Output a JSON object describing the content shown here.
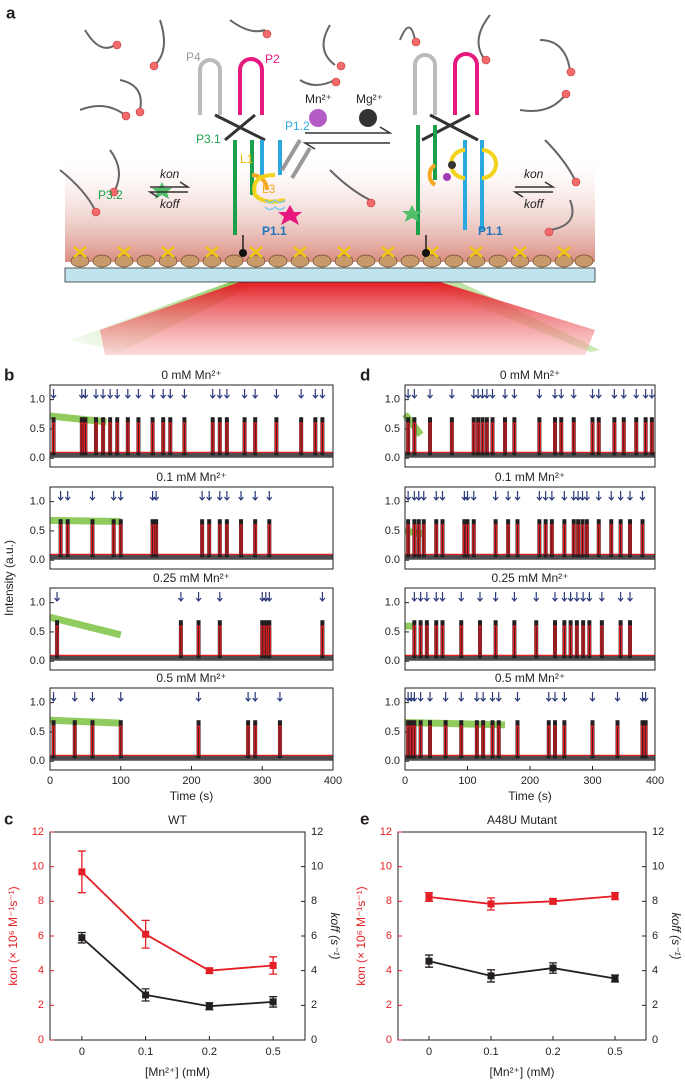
{
  "panel_labels": {
    "a": "a",
    "b": "b",
    "c": "c",
    "d": "d",
    "e": "e"
  },
  "diagram": {
    "labels": {
      "p4": "P4",
      "p2": "P2",
      "p31": "P3.1",
      "p12": "P1.2",
      "l1": "L1",
      "l3": "L3",
      "p32": "P3.2",
      "p11_left": "P1.1",
      "mn": "Mn²⁺",
      "mg": "Mg²⁺",
      "kon_left": "kon",
      "koff_left": "koff",
      "p11_right": "P1.1",
      "kon_right": "kon",
      "koff_right": "koff"
    }
  },
  "chart_data": [
    {
      "type": "trace",
      "title": "0 mM Mn²⁺",
      "xlim": [
        0,
        400
      ],
      "ylim": [
        -0.15,
        1.25
      ],
      "yticks": [
        {
          "value": 0,
          "label": "0.0"
        },
        {
          "value": 0.5,
          "label": "0.5"
        },
        {
          "value": 1,
          "label": "1.0"
        }
      ],
      "arrows": [
        5,
        45,
        50,
        65,
        75,
        85,
        95,
        110,
        125,
        145,
        160,
        170,
        190,
        230,
        240,
        250,
        275,
        290,
        320,
        355,
        375,
        385
      ],
      "fit": {
        "color": "#e31e24",
        "baseline": 0.1,
        "level": 0.6
      },
      "trace": {
        "color": "#231f20",
        "baseline": 0.05,
        "level": 0.7
      },
      "donor": {
        "color": "#7dc242",
        "x": [
          0,
          80
        ],
        "values": [
          0.72,
          0.62
        ]
      }
    },
    {
      "type": "trace",
      "title": "0.1 mM Mn²⁺",
      "xlim": [
        0,
        400
      ],
      "ylim": [
        -0.15,
        1.25
      ],
      "yticks": [
        {
          "value": 0,
          "label": "0.0"
        },
        {
          "value": 0.5,
          "label": "0.5"
        },
        {
          "value": 1,
          "label": "1.0"
        }
      ],
      "arrows": [
        15,
        25,
        60,
        90,
        100,
        145,
        150,
        215,
        225,
        240,
        250,
        270,
        290,
        310
      ],
      "fit": {
        "color": "#e31e24",
        "baseline": 0.1,
        "level": 0.6
      },
      "trace": {
        "color": "#231f20",
        "baseline": 0.05,
        "level": 0.7
      },
      "donor": {
        "color": "#7dc242",
        "x": [
          0,
          100
        ],
        "values": [
          0.68,
          0.66
        ]
      }
    },
    {
      "type": "trace",
      "title": "0.25 mM Mn²⁺",
      "xlim": [
        0,
        400
      ],
      "ylim": [
        -0.15,
        1.25
      ],
      "yticks": [
        {
          "value": 0,
          "label": "0.0"
        },
        {
          "value": 0.5,
          "label": "0.5"
        },
        {
          "value": 1,
          "label": "1.0"
        }
      ],
      "ylabel": "Intensity (a.u.)",
      "arrows": [
        10,
        185,
        210,
        240,
        300,
        305,
        310,
        385
      ],
      "fit": {
        "color": "#e31e24",
        "baseline": 0.1,
        "level": 0.6
      },
      "trace": {
        "color": "#231f20",
        "baseline": 0.05,
        "level": 0.7
      },
      "donor": {
        "color": "#7dc242",
        "x": [
          0,
          100
        ],
        "values": [
          0.75,
          0.45
        ]
      }
    },
    {
      "type": "trace",
      "title": "0.5 mM Mn²⁺",
      "xlim": [
        0,
        400
      ],
      "ylim": [
        -0.15,
        1.25
      ],
      "yticks": [
        {
          "value": 0,
          "label": "0.0"
        },
        {
          "value": 0.5,
          "label": "0.5"
        },
        {
          "value": 1,
          "label": "1.0"
        }
      ],
      "xticks": [
        0,
        100,
        200,
        300,
        400
      ],
      "xlabel": "Time (s)",
      "arrows": [
        5,
        35,
        60,
        100,
        210,
        280,
        290,
        325
      ],
      "fit": {
        "color": "#e31e24",
        "baseline": 0.1,
        "level": 0.6
      },
      "trace": {
        "color": "#231f20",
        "baseline": 0.05,
        "level": 0.7
      },
      "donor": {
        "color": "#7dc242",
        "x": [
          0,
          100
        ],
        "values": [
          0.7,
          0.65
        ]
      }
    },
    {
      "type": "trace",
      "title": "0 mM Mn²⁺",
      "xlim": [
        0,
        400
      ],
      "ylim": [
        -0.15,
        1.25
      ],
      "yticks": [
        {
          "value": 0,
          "label": "0.0"
        },
        {
          "value": 0.5,
          "label": "0.5"
        },
        {
          "value": 1,
          "label": "1.0"
        }
      ],
      "arrows": [
        5,
        15,
        40,
        75,
        110,
        117,
        124,
        131,
        140,
        160,
        175,
        215,
        240,
        250,
        270,
        300,
        310,
        335,
        350,
        370,
        385,
        395
      ],
      "fit": {
        "color": "#e31e24",
        "baseline": 0.1,
        "level": 0.6
      },
      "trace": {
        "color": "#231f20",
        "baseline": 0.05,
        "level": 0.7
      },
      "donor": {
        "color": "#7dc242",
        "x": [
          0,
          25
        ],
        "values": [
          0.75,
          0.4
        ]
      }
    },
    {
      "type": "trace",
      "title": "0.1 mM Mn²⁺",
      "xlim": [
        0,
        400
      ],
      "ylim": [
        -0.15,
        1.25
      ],
      "yticks": [
        {
          "value": 0,
          "label": "0.0"
        },
        {
          "value": 0.5,
          "label": "0.5"
        },
        {
          "value": 1,
          "label": "1.0"
        }
      ],
      "arrows": [
        5,
        15,
        22,
        30,
        50,
        60,
        95,
        100,
        110,
        145,
        165,
        180,
        215,
        225,
        235,
        255,
        270,
        277,
        284,
        291,
        310,
        330,
        345,
        360,
        380
      ],
      "fit": {
        "color": "#e31e24",
        "baseline": 0.1,
        "level": 0.6
      },
      "trace": {
        "color": "#231f20",
        "baseline": 0.05,
        "level": 0.7
      },
      "donor": {
        "color": "#7dc242",
        "x": [
          0,
          30
        ],
        "values": [
          0.5,
          0.45
        ]
      }
    },
    {
      "type": "trace",
      "title": "0.25 mM Mn²⁺",
      "xlim": [
        0,
        400
      ],
      "ylim": [
        -0.15,
        1.25
      ],
      "yticks": [
        {
          "value": 0,
          "label": "0.0"
        },
        {
          "value": 0.5,
          "label": "0.5"
        },
        {
          "value": 1,
          "label": "1.0"
        }
      ],
      "arrows": [
        15,
        25,
        35,
        50,
        60,
        90,
        120,
        145,
        175,
        210,
        240,
        255,
        265,
        275,
        285,
        295,
        315,
        345,
        360
      ],
      "fit": {
        "color": "#e31e24",
        "baseline": 0.1,
        "level": 0.6
      },
      "trace": {
        "color": "#231f20",
        "baseline": 0.05,
        "level": 0.7
      },
      "donor": {
        "color": "#7dc242",
        "x": [
          0,
          15
        ],
        "values": [
          0.6,
          0.6
        ]
      }
    },
    {
      "type": "trace",
      "title": "0.5 mM Mn²⁺",
      "xlim": [
        0,
        400
      ],
      "ylim": [
        -0.15,
        1.25
      ],
      "yticks": [
        {
          "value": 0,
          "label": "0.0"
        },
        {
          "value": 0.5,
          "label": "0.5"
        },
        {
          "value": 1,
          "label": "1.0"
        }
      ],
      "xticks": [
        0,
        100,
        200,
        300,
        400
      ],
      "xlabel": "Time (s)",
      "arrows": [
        5,
        10,
        15,
        25,
        40,
        65,
        90,
        115,
        125,
        140,
        150,
        180,
        230,
        240,
        255,
        300,
        340,
        380,
        385
      ],
      "fit": {
        "color": "#e31e24",
        "baseline": 0.1,
        "level": 0.6
      },
      "trace": {
        "color": "#231f20",
        "baseline": 0.05,
        "level": 0.7
      },
      "donor": {
        "color": "#7dc242",
        "x": [
          0,
          160
        ],
        "values": [
          0.66,
          0.62
        ]
      }
    },
    {
      "type": "errorline",
      "title": "WT",
      "categories": [
        "0",
        "0.1",
        "0.2",
        "0.5"
      ],
      "xlabel": "[Mn²⁺] (mM)",
      "ylabel": "kon (× 10⁶ M⁻¹s⁻¹)",
      "y2label": "koff (s⁻¹)",
      "ylim": [
        0,
        12
      ],
      "yticks": [
        0,
        2,
        4,
        6,
        8,
        10,
        12
      ],
      "y2lim": [
        0,
        12
      ],
      "y2ticks": [
        0,
        2,
        4,
        6,
        8,
        10,
        12
      ],
      "series": [
        {
          "color": "#e31e24",
          "values": [
            9.7,
            6.1,
            4.0,
            4.3
          ],
          "errors": [
            1.2,
            0.8,
            0.15,
            0.5
          ]
        },
        {
          "color": "#231f20",
          "axis": "y2",
          "values": [
            5.9,
            2.6,
            1.95,
            2.2
          ],
          "errors": [
            0.3,
            0.35,
            0.2,
            0.3
          ]
        }
      ]
    },
    {
      "type": "errorline",
      "title": "A48U Mutant",
      "categories": [
        "0",
        "0.1",
        "0.2",
        "0.5"
      ],
      "xlabel": "[Mn²⁺] (mM)",
      "ylabel": "kon (× 10⁶ M⁻¹s⁻¹)",
      "y2label": "koff (s⁻¹)",
      "ylim": [
        0,
        12
      ],
      "yticks": [
        0,
        2,
        4,
        6,
        8,
        10,
        12
      ],
      "y2lim": [
        0,
        12
      ],
      "y2ticks": [
        0,
        2,
        4,
        6,
        8,
        10,
        12
      ],
      "series": [
        {
          "color": "#e31e24",
          "values": [
            8.25,
            7.85,
            8.0,
            8.3
          ],
          "errors": [
            0.25,
            0.35,
            0.15,
            0.2
          ]
        },
        {
          "color": "#231f20",
          "axis": "y2",
          "values": [
            4.55,
            3.7,
            4.15,
            3.55
          ],
          "errors": [
            0.35,
            0.35,
            0.3,
            0.2
          ]
        }
      ]
    }
  ]
}
